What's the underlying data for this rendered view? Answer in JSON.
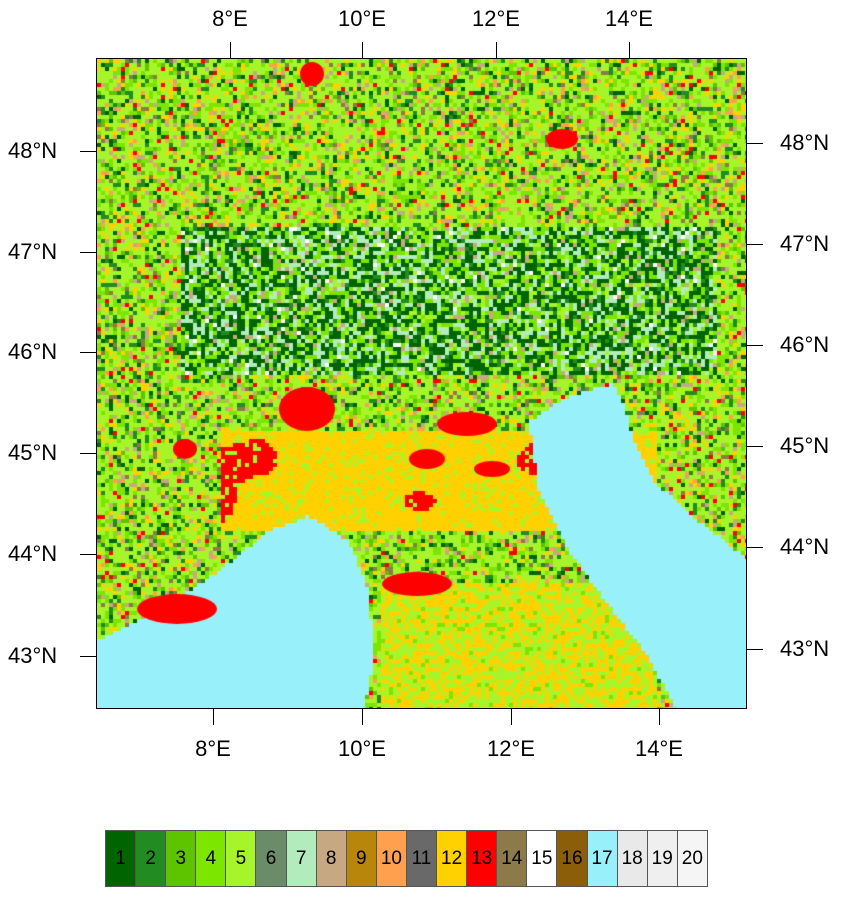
{
  "map": {
    "x_ticks": [
      {
        "label": "8°E",
        "lon": 8
      },
      {
        "label": "10°E",
        "lon": 10
      },
      {
        "label": "12°E",
        "lon": 12
      },
      {
        "label": "14°E",
        "lon": 14
      }
    ],
    "y_ticks": [
      {
        "label": "48°N",
        "lat": 48
      },
      {
        "label": "47°N",
        "lat": 47
      },
      {
        "label": "46°N",
        "lat": 46
      },
      {
        "label": "45°N",
        "lat": 45
      },
      {
        "label": "44°N",
        "lat": 44
      },
      {
        "label": "43°N",
        "lat": 43
      }
    ],
    "projection": "Lambert conformal (top and left/right labels slightly skewed)"
  },
  "legend": {
    "classes": [
      {
        "label": "1",
        "color": "#006400"
      },
      {
        "label": "2",
        "color": "#228b22"
      },
      {
        "label": "3",
        "color": "#5fc400"
      },
      {
        "label": "4",
        "color": "#7ce600"
      },
      {
        "label": "5",
        "color": "#a5f52a"
      },
      {
        "label": "6",
        "color": "#6b8c68"
      },
      {
        "label": "7",
        "color": "#b2ebbc"
      },
      {
        "label": "8",
        "color": "#c8a882"
      },
      {
        "label": "9",
        "color": "#b8860b"
      },
      {
        "label": "10",
        "color": "#ffa04f"
      },
      {
        "label": "11",
        "color": "#696969"
      },
      {
        "label": "12",
        "color": "#ffd100"
      },
      {
        "label": "13",
        "color": "#ff0000"
      },
      {
        "label": "14",
        "color": "#8c7a4a"
      },
      {
        "label": "15",
        "color": "#ffffff"
      },
      {
        "label": "16",
        "color": "#8b5e0a"
      },
      {
        "label": "17",
        "color": "#98f0fa"
      },
      {
        "label": "18",
        "color": "#e9e9e9"
      },
      {
        "label": "19",
        "color": "#efefef"
      },
      {
        "label": "20",
        "color": "#f5f5f5"
      }
    ]
  }
}
